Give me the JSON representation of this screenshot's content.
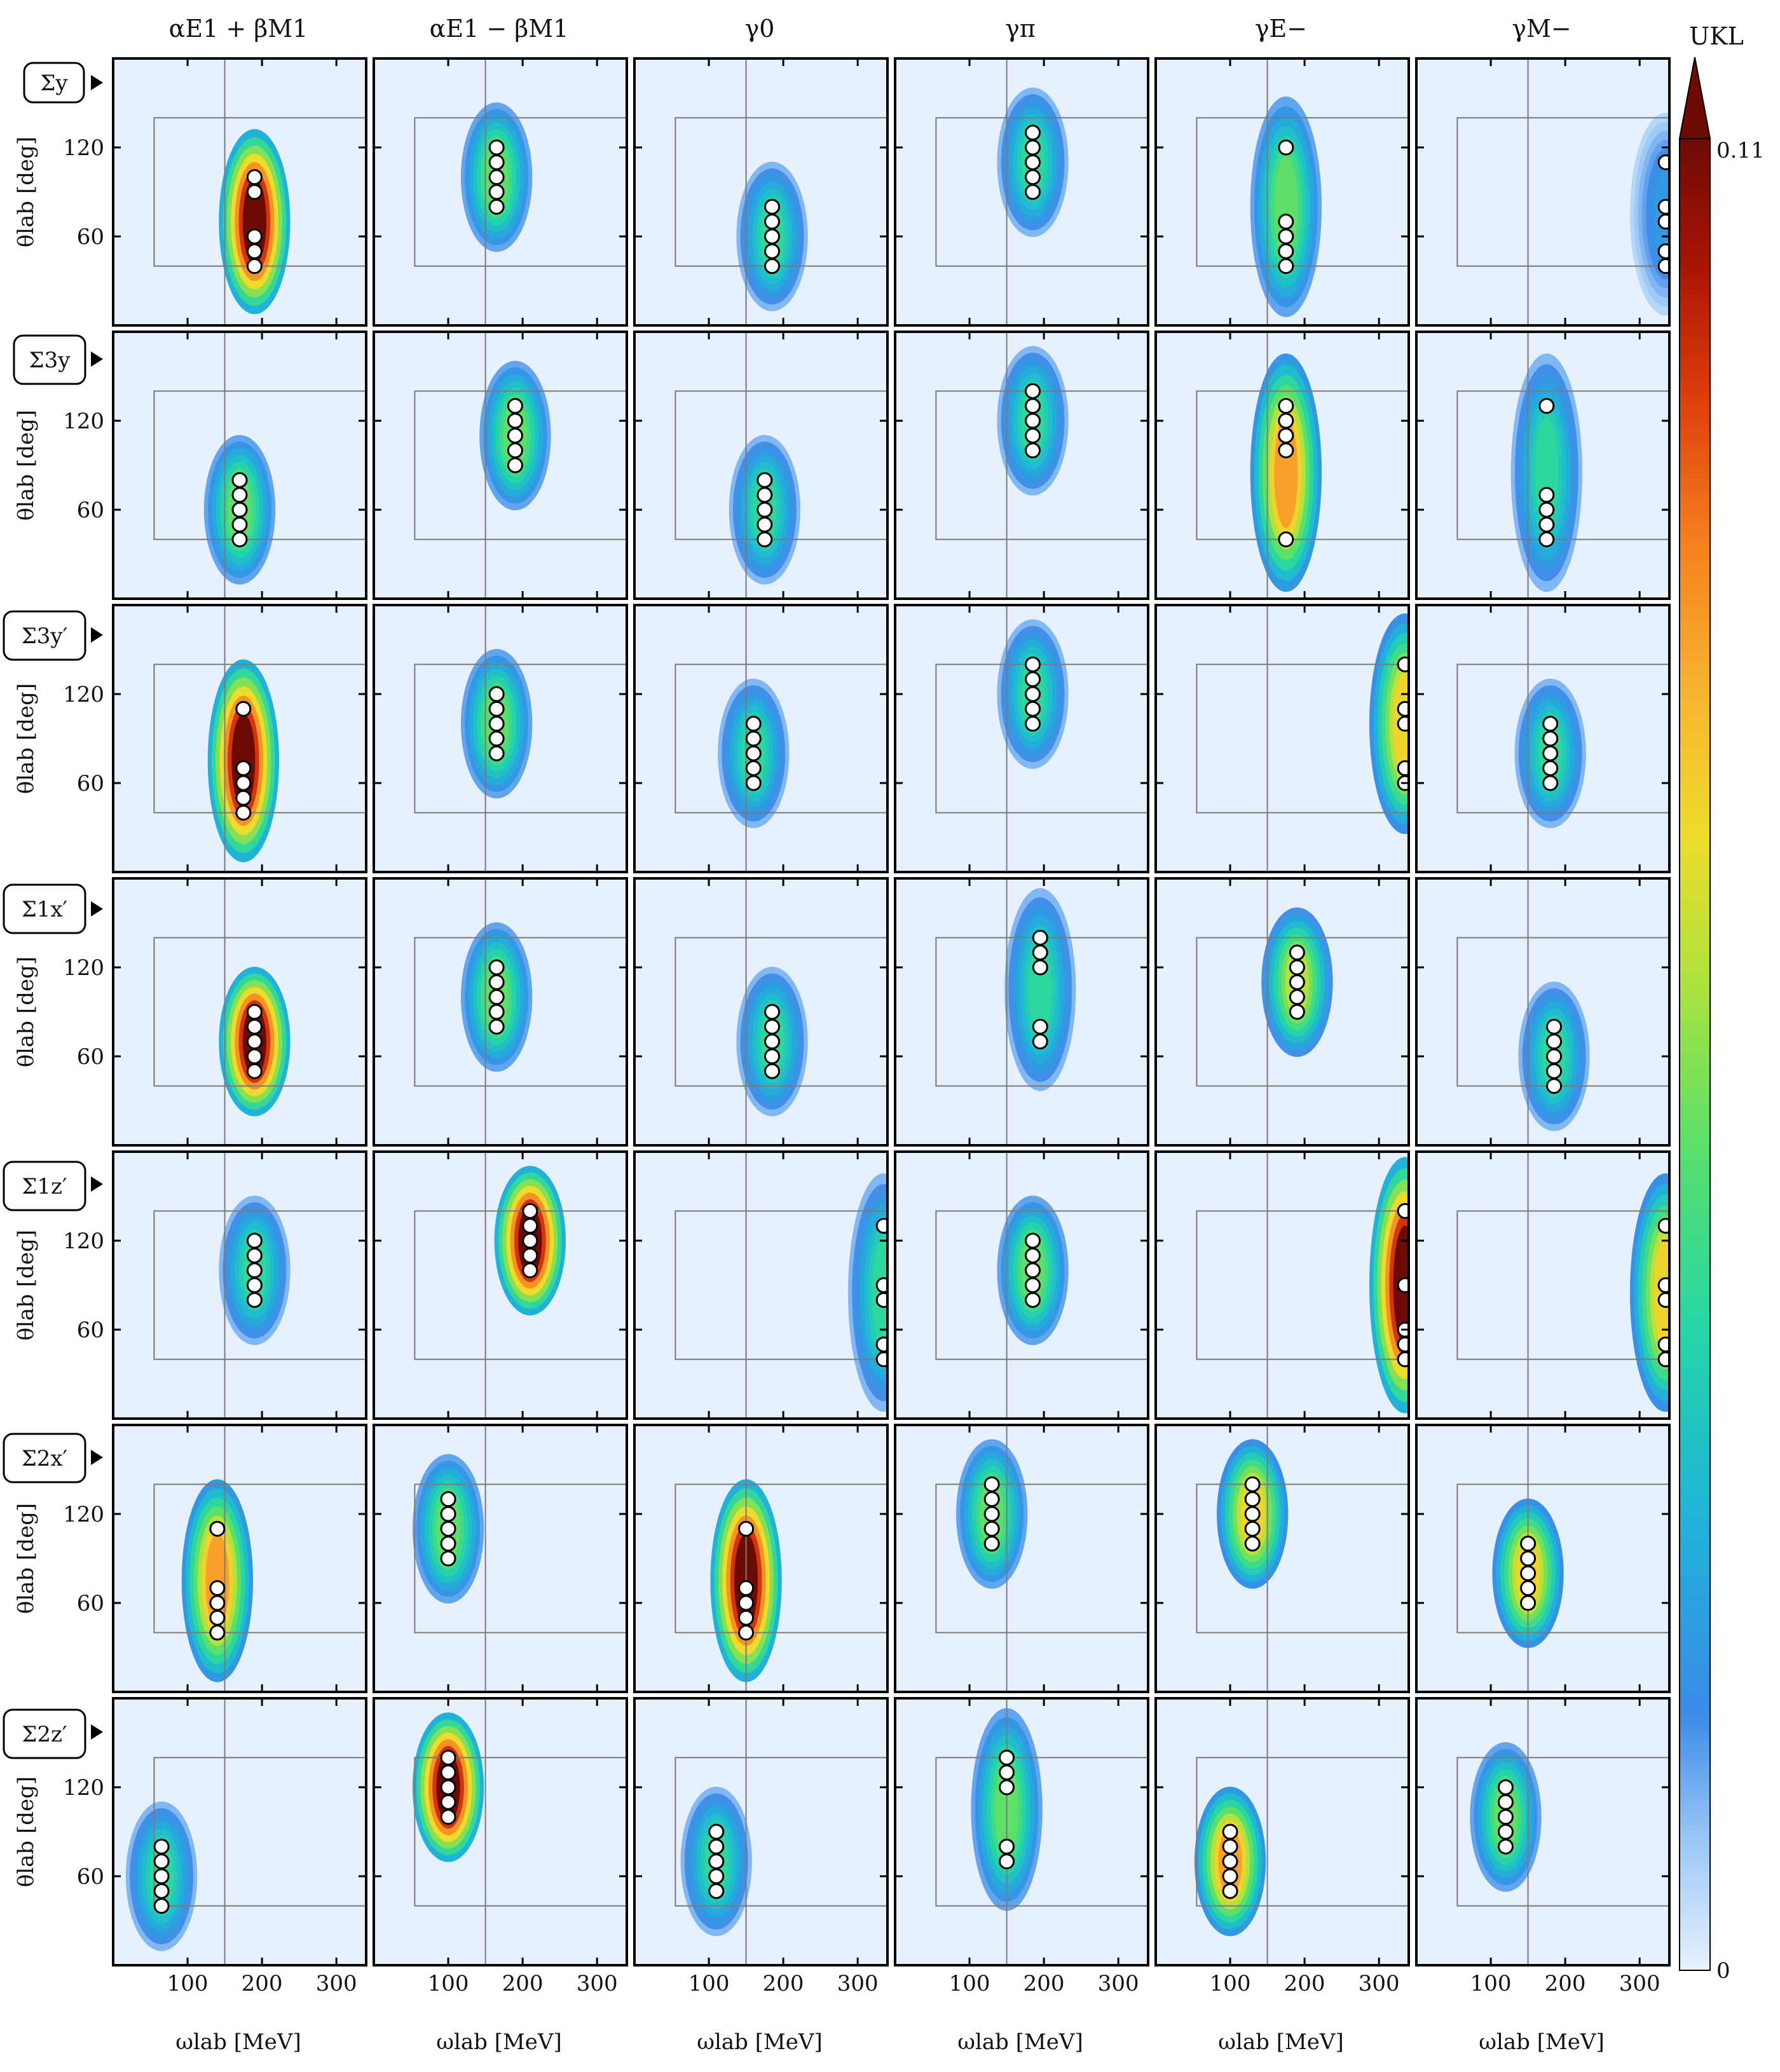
{
  "figure": {
    "column_headers": [
      "αE1 + βM1",
      "αE1 − βM1",
      "γ0",
      "γπ",
      "γE−",
      "γM−"
    ],
    "row_labels": [
      "Σy",
      "Σ3y",
      "Σ3y′",
      "Σ1x′",
      "Σ1z′",
      "Σ2x′",
      "Σ2z′"
    ],
    "colorbar": {
      "title": "UKL",
      "min_label": "0",
      "max_label": "0.11",
      "extend": "max"
    },
    "colors": {
      "low": "#e6f1fd",
      "frame": "#000000",
      "grid": "#7a7a7a",
      "point_fill": "#ffffff",
      "point_edge": "#000000"
    }
  },
  "chart_data": {
    "type": "heatmap",
    "xlabel": "ωlab [MeV]",
    "ylabel": "θlab [deg]",
    "xlim": [
      0,
      340
    ],
    "ylim": [
      0,
      180
    ],
    "xticks": [
      100,
      200,
      300
    ],
    "yticks": [
      60,
      120
    ],
    "colorbar_range": [
      0,
      0.11
    ],
    "reference_line_x": 150,
    "design_box": {
      "x": [
        55,
        340
      ],
      "y": [
        40,
        140
      ]
    },
    "points_are_selected_kinematics": true,
    "panels": [
      [
        {
          "points": [
            [
              190,
              100
            ],
            [
              190,
              90
            ],
            [
              190,
              60
            ],
            [
              190,
              50
            ],
            [
              190,
              40
            ]
          ],
          "peak": 0.11
        },
        {
          "points": [
            [
              165,
              120
            ],
            [
              165,
              110
            ],
            [
              165,
              100
            ],
            [
              165,
              90
            ],
            [
              165,
              80
            ]
          ],
          "peak": 0.05
        },
        {
          "points": [
            [
              185,
              80
            ],
            [
              185,
              70
            ],
            [
              185,
              60
            ],
            [
              185,
              50
            ],
            [
              185,
              40
            ]
          ],
          "peak": 0.04
        },
        {
          "points": [
            [
              185,
              130
            ],
            [
              185,
              120
            ],
            [
              185,
              110
            ],
            [
              185,
              100
            ],
            [
              185,
              90
            ]
          ],
          "peak": 0.04
        },
        {
          "points": [
            [
              175,
              120
            ],
            [
              175,
              70
            ],
            [
              175,
              60
            ],
            [
              175,
              50
            ],
            [
              175,
              40
            ]
          ],
          "peak": 0.05
        },
        {
          "points": [
            [
              335,
              110
            ],
            [
              335,
              80
            ],
            [
              335,
              70
            ],
            [
              335,
              50
            ],
            [
              335,
              40
            ]
          ],
          "peak": 0.02
        }
      ],
      [
        {
          "points": [
            [
              170,
              80
            ],
            [
              170,
              70
            ],
            [
              170,
              60
            ],
            [
              170,
              50
            ],
            [
              170,
              40
            ]
          ],
          "peak": 0.05
        },
        {
          "points": [
            [
              190,
              130
            ],
            [
              190,
              120
            ],
            [
              190,
              110
            ],
            [
              190,
              100
            ],
            [
              190,
              90
            ]
          ],
          "peak": 0.05
        },
        {
          "points": [
            [
              175,
              80
            ],
            [
              175,
              70
            ],
            [
              175,
              60
            ],
            [
              175,
              50
            ],
            [
              175,
              40
            ]
          ],
          "peak": 0.04
        },
        {
          "points": [
            [
              185,
              140
            ],
            [
              185,
              130
            ],
            [
              185,
              120
            ],
            [
              185,
              110
            ],
            [
              185,
              100
            ]
          ],
          "peak": 0.04
        },
        {
          "points": [
            [
              175,
              130
            ],
            [
              175,
              120
            ],
            [
              175,
              110
            ],
            [
              175,
              100
            ],
            [
              175,
              40
            ]
          ],
          "peak": 0.08
        },
        {
          "points": [
            [
              175,
              130
            ],
            [
              175,
              70
            ],
            [
              175,
              60
            ],
            [
              175,
              50
            ],
            [
              175,
              40
            ]
          ],
          "peak": 0.04
        }
      ],
      [
        {
          "points": [
            [
              175,
              110
            ],
            [
              175,
              70
            ],
            [
              175,
              60
            ],
            [
              175,
              50
            ],
            [
              175,
              40
            ]
          ],
          "peak": 0.11
        },
        {
          "points": [
            [
              165,
              120
            ],
            [
              165,
              110
            ],
            [
              165,
              100
            ],
            [
              165,
              90
            ],
            [
              165,
              80
            ]
          ],
          "peak": 0.05
        },
        {
          "points": [
            [
              160,
              100
            ],
            [
              160,
              90
            ],
            [
              160,
              80
            ],
            [
              160,
              70
            ],
            [
              160,
              60
            ]
          ],
          "peak": 0.04
        },
        {
          "points": [
            [
              185,
              140
            ],
            [
              185,
              130
            ],
            [
              185,
              120
            ],
            [
              185,
              110
            ],
            [
              185,
              100
            ]
          ],
          "peak": 0.04
        },
        {
          "points": [
            [
              335,
              140
            ],
            [
              335,
              110
            ],
            [
              335,
              100
            ],
            [
              335,
              70
            ],
            [
              335,
              60
            ]
          ],
          "peak": 0.07
        },
        {
          "points": [
            [
              180,
              100
            ],
            [
              180,
              90
            ],
            [
              180,
              80
            ],
            [
              180,
              70
            ],
            [
              180,
              60
            ]
          ],
          "peak": 0.04
        }
      ],
      [
        {
          "points": [
            [
              190,
              90
            ],
            [
              190,
              80
            ],
            [
              190,
              70
            ],
            [
              190,
              60
            ],
            [
              190,
              50
            ]
          ],
          "peak": 0.11
        },
        {
          "points": [
            [
              165,
              120
            ],
            [
              165,
              110
            ],
            [
              165,
              100
            ],
            [
              165,
              90
            ],
            [
              165,
              80
            ]
          ],
          "peak": 0.05
        },
        {
          "points": [
            [
              185,
              90
            ],
            [
              185,
              80
            ],
            [
              185,
              70
            ],
            [
              185,
              60
            ],
            [
              185,
              50
            ]
          ],
          "peak": 0.04
        },
        {
          "points": [
            [
              195,
              140
            ],
            [
              195,
              130
            ],
            [
              195,
              120
            ],
            [
              195,
              80
            ],
            [
              195,
              70
            ]
          ],
          "peak": 0.04
        },
        {
          "points": [
            [
              190,
              130
            ],
            [
              190,
              120
            ],
            [
              190,
              110
            ],
            [
              190,
              100
            ],
            [
              190,
              90
            ]
          ],
          "peak": 0.06
        },
        {
          "points": [
            [
              185,
              80
            ],
            [
              185,
              70
            ],
            [
              185,
              60
            ],
            [
              185,
              50
            ],
            [
              185,
              40
            ]
          ],
          "peak": 0.04
        }
      ],
      [
        {
          "points": [
            [
              190,
              120
            ],
            [
              190,
              110
            ],
            [
              190,
              100
            ],
            [
              190,
              90
            ],
            [
              190,
              80
            ]
          ],
          "peak": 0.04
        },
        {
          "points": [
            [
              210,
              140
            ],
            [
              210,
              130
            ],
            [
              210,
              120
            ],
            [
              210,
              110
            ],
            [
              210,
              100
            ]
          ],
          "peak": 0.11
        },
        {
          "points": [
            [
              335,
              130
            ],
            [
              335,
              90
            ],
            [
              335,
              80
            ],
            [
              335,
              50
            ],
            [
              335,
              40
            ]
          ],
          "peak": 0.04
        },
        {
          "points": [
            [
              185,
              120
            ],
            [
              185,
              110
            ],
            [
              185,
              100
            ],
            [
              185,
              90
            ],
            [
              185,
              80
            ]
          ],
          "peak": 0.05
        },
        {
          "points": [
            [
              335,
              140
            ],
            [
              335,
              90
            ],
            [
              335,
              60
            ],
            [
              335,
              50
            ],
            [
              335,
              40
            ]
          ],
          "peak": 0.11
        },
        {
          "points": [
            [
              335,
              130
            ],
            [
              335,
              90
            ],
            [
              335,
              80
            ],
            [
              335,
              50
            ],
            [
              335,
              40
            ]
          ],
          "peak": 0.07
        }
      ],
      [
        {
          "points": [
            [
              140,
              110
            ],
            [
              140,
              70
            ],
            [
              140,
              60
            ],
            [
              140,
              50
            ],
            [
              140,
              40
            ]
          ],
          "peak": 0.08
        },
        {
          "points": [
            [
              100,
              130
            ],
            [
              100,
              120
            ],
            [
              100,
              110
            ],
            [
              100,
              100
            ],
            [
              100,
              90
            ]
          ],
          "peak": 0.05
        },
        {
          "points": [
            [
              150,
              110
            ],
            [
              150,
              70
            ],
            [
              150,
              60
            ],
            [
              150,
              50
            ],
            [
              150,
              40
            ]
          ],
          "peak": 0.11
        },
        {
          "points": [
            [
              130,
              140
            ],
            [
              130,
              130
            ],
            [
              130,
              120
            ],
            [
              130,
              110
            ],
            [
              130,
              100
            ]
          ],
          "peak": 0.05
        },
        {
          "points": [
            [
              130,
              140
            ],
            [
              130,
              130
            ],
            [
              130,
              120
            ],
            [
              130,
              110
            ],
            [
              130,
              100
            ]
          ],
          "peak": 0.07
        },
        {
          "points": [
            [
              150,
              100
            ],
            [
              150,
              90
            ],
            [
              150,
              80
            ],
            [
              150,
              70
            ],
            [
              150,
              60
            ]
          ],
          "peak": 0.07
        }
      ],
      [
        {
          "points": [
            [
              65,
              80
            ],
            [
              65,
              70
            ],
            [
              65,
              60
            ],
            [
              65,
              50
            ],
            [
              65,
              40
            ]
          ],
          "peak": 0.04
        },
        {
          "points": [
            [
              100,
              140
            ],
            [
              100,
              130
            ],
            [
              100,
              120
            ],
            [
              100,
              110
            ],
            [
              100,
              100
            ]
          ],
          "peak": 0.11
        },
        {
          "points": [
            [
              110,
              90
            ],
            [
              110,
              80
            ],
            [
              110,
              70
            ],
            [
              110,
              60
            ],
            [
              110,
              50
            ]
          ],
          "peak": 0.04
        },
        {
          "points": [
            [
              150,
              140
            ],
            [
              150,
              130
            ],
            [
              150,
              120
            ],
            [
              150,
              80
            ],
            [
              150,
              70
            ]
          ],
          "peak": 0.05
        },
        {
          "points": [
            [
              100,
              90
            ],
            [
              100,
              80
            ],
            [
              100,
              70
            ],
            [
              100,
              60
            ],
            [
              100,
              50
            ]
          ],
          "peak": 0.08
        },
        {
          "points": [
            [
              120,
              120
            ],
            [
              120,
              110
            ],
            [
              120,
              100
            ],
            [
              120,
              90
            ],
            [
              120,
              80
            ]
          ],
          "peak": 0.05
        }
      ]
    ]
  }
}
